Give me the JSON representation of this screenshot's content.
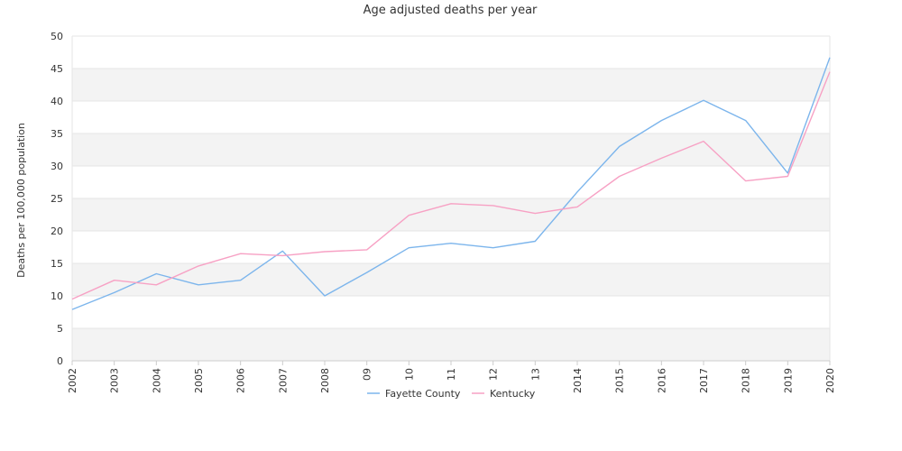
{
  "chart_data": {
    "type": "line",
    "title": "Age adjusted deaths per year",
    "xlabel": "",
    "ylabel": "Deaths per 100,000 population",
    "categories": [
      "2002",
      "2003",
      "2004",
      "2005",
      "2006",
      "2007",
      "2008",
      "09",
      "10",
      "11",
      "12",
      "13",
      "2014",
      "2015",
      "2016",
      "2017",
      "2018",
      "2019",
      "2020"
    ],
    "ylim": [
      0,
      50
    ],
    "yticks": [
      "0",
      "5",
      "10",
      "15",
      "20",
      "25",
      "30",
      "35",
      "40",
      "45",
      "50"
    ],
    "grid": "alternating horizontal bands",
    "legend_position": "bottom",
    "series": [
      {
        "name": "Fayette County",
        "color": "#7cb5ec",
        "values": [
          7.9,
          10.5,
          13.4,
          11.7,
          12.4,
          16.9,
          10.0,
          13.6,
          17.4,
          18.1,
          17.4,
          18.4,
          26.0,
          33.0,
          37.0,
          40.1,
          37.0,
          28.9,
          46.7
        ]
      },
      {
        "name": "Kentucky",
        "color": "#f7a1c4",
        "values": [
          9.5,
          12.4,
          11.7,
          14.6,
          16.5,
          16.2,
          16.8,
          17.1,
          22.4,
          24.2,
          23.9,
          22.7,
          23.7,
          28.4,
          31.2,
          33.8,
          27.7,
          28.4,
          44.5
        ]
      }
    ]
  }
}
